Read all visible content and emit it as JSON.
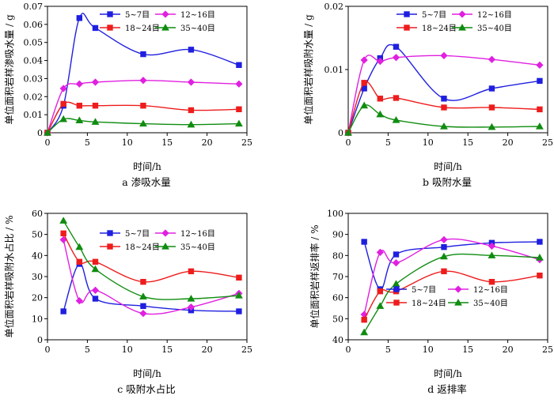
{
  "chart_data": [
    {
      "type": "line",
      "caption": "a  渗吸水量",
      "xlabel": "时间/h",
      "ylabel": "单位面积岩样渗吸水量 / g",
      "xlim": [
        0,
        25
      ],
      "ylim": [
        0,
        0.07
      ],
      "xticks": [
        0,
        5,
        10,
        15,
        20,
        25
      ],
      "xtick_labels": [
        "0",
        "5",
        "10",
        "15",
        "20",
        "25"
      ],
      "yticks": [
        0,
        0.01,
        0.02,
        0.03,
        0.04,
        0.05,
        0.06,
        0.07
      ],
      "ytick_labels": [
        "0",
        "0.01",
        "0.02",
        "0.03",
        "0.04",
        "0.05",
        "0.06",
        "0.07"
      ],
      "series": [
        {
          "name": "5~7目",
          "color": "#1f1fe0",
          "marker": "square",
          "x": [
            0,
            2,
            4,
            6,
            12,
            18,
            24
          ],
          "values": [
            0,
            0.015,
            0.0635,
            0.058,
            0.0435,
            0.046,
            0.0375
          ]
        },
        {
          "name": "12~16目",
          "color": "#e020e0",
          "marker": "diamond",
          "x": [
            0,
            2,
            4,
            6,
            12,
            18,
            24
          ],
          "values": [
            0,
            0.0245,
            0.027,
            0.028,
            0.029,
            0.028,
            0.027
          ]
        },
        {
          "name": "18~24目",
          "color": "#ee1c1c",
          "marker": "square",
          "x": [
            0,
            2,
            4,
            6,
            12,
            18,
            24
          ],
          "values": [
            0,
            0.016,
            0.015,
            0.015,
            0.015,
            0.0125,
            0.013
          ]
        },
        {
          "name": "35~40目",
          "color": "#108c10",
          "marker": "triangle",
          "x": [
            0,
            2,
            4,
            6,
            12,
            18,
            24
          ],
          "values": [
            0,
            0.0075,
            0.0068,
            0.006,
            0.005,
            0.0045,
            0.005
          ]
        }
      ]
    },
    {
      "type": "line",
      "caption": "b  吸附水量",
      "xlabel": "时间/h",
      "ylabel": "单位面积岩样吸附水量 / g",
      "xlim": [
        0,
        25
      ],
      "ylim": [
        0,
        0.02
      ],
      "xticks": [
        0,
        5,
        10,
        15,
        20,
        25
      ],
      "xtick_labels": [
        "0",
        "5",
        "10",
        "15",
        "20",
        "25"
      ],
      "yticks": [
        0,
        0.01,
        0.02
      ],
      "ytick_labels": [
        "0",
        "0.01",
        "0.02"
      ],
      "series": [
        {
          "name": "5~7目",
          "color": "#1f1fe0",
          "marker": "square",
          "x": [
            0,
            2,
            4,
            6,
            12,
            18,
            24
          ],
          "values": [
            0,
            0.007,
            0.0118,
            0.0136,
            0.0054,
            0.007,
            0.0082
          ]
        },
        {
          "name": "12~16目",
          "color": "#e020e0",
          "marker": "diamond",
          "x": [
            0,
            2,
            4,
            6,
            12,
            18,
            24
          ],
          "values": [
            0,
            0.0115,
            0.0113,
            0.0119,
            0.0122,
            0.0116,
            0.0107
          ]
        },
        {
          "name": "18~24目",
          "color": "#ee1c1c",
          "marker": "square",
          "x": [
            0,
            2,
            4,
            6,
            12,
            18,
            24
          ],
          "values": [
            0,
            0.0079,
            0.0054,
            0.0055,
            0.004,
            0.004,
            0.0037
          ]
        },
        {
          "name": "35~40目",
          "color": "#108c10",
          "marker": "triangle",
          "x": [
            0,
            2,
            4,
            6,
            12,
            18,
            24
          ],
          "values": [
            0,
            0.0043,
            0.0029,
            0.002,
            0.001,
            0.0009,
            0.001
          ]
        }
      ]
    },
    {
      "type": "line",
      "caption": "c  吸附水占比",
      "xlabel": "时间/h",
      "ylabel": "单位面积岩样吸附水占比 / %",
      "xlim": [
        0,
        25
      ],
      "ylim": [
        0,
        60
      ],
      "xticks": [
        0,
        5,
        10,
        15,
        20,
        25
      ],
      "xtick_labels": [
        "0",
        "5",
        "10",
        "15",
        "20",
        "25"
      ],
      "yticks": [
        0,
        10,
        20,
        30,
        40,
        50,
        60
      ],
      "ytick_labels": [
        "0",
        "10",
        "20",
        "30",
        "40",
        "50",
        "60"
      ],
      "series": [
        {
          "name": "5~7目",
          "color": "#1f1fe0",
          "marker": "square",
          "x": [
            2,
            4,
            6,
            12,
            18,
            24
          ],
          "values": [
            13.5,
            36,
            19.5,
            16,
            14,
            13.5
          ]
        },
        {
          "name": "12~16目",
          "color": "#e020e0",
          "marker": "diamond",
          "x": [
            2,
            4,
            6,
            12,
            18,
            24
          ],
          "values": [
            47.5,
            18.5,
            23.5,
            12.5,
            15.5,
            22
          ]
        },
        {
          "name": "18~24目",
          "color": "#ee1c1c",
          "marker": "square",
          "x": [
            2,
            4,
            6,
            12,
            18,
            24
          ],
          "values": [
            50.5,
            37,
            37,
            27.5,
            32.5,
            29.5
          ]
        },
        {
          "name": "35~40目",
          "color": "#108c10",
          "marker": "triangle",
          "x": [
            2,
            4,
            6,
            12,
            18,
            24
          ],
          "values": [
            56.5,
            44,
            33.5,
            20.5,
            19.5,
            21
          ]
        }
      ]
    },
    {
      "type": "line",
      "caption": "d  返排率",
      "xlabel": "时间/h",
      "ylabel": "单位面积岩样返排率 / %",
      "xlim": [
        0,
        25
      ],
      "ylim": [
        40,
        100
      ],
      "xticks": [
        0,
        5,
        10,
        15,
        20,
        25
      ],
      "xtick_labels": [
        "0",
        "5",
        "10",
        "15",
        "20",
        "25"
      ],
      "yticks": [
        40,
        50,
        60,
        70,
        80,
        90,
        100
      ],
      "ytick_labels": [
        "40",
        "50",
        "60",
        "70",
        "80",
        "90",
        "100"
      ],
      "series": [
        {
          "name": "5~7目",
          "color": "#1f1fe0",
          "marker": "square",
          "x": [
            2,
            4,
            6,
            12,
            18,
            24
          ],
          "values": [
            86.5,
            64,
            80.5,
            84,
            86,
            86.5
          ]
        },
        {
          "name": "12~16目",
          "color": "#e020e0",
          "marker": "diamond",
          "x": [
            2,
            4,
            6,
            12,
            18,
            24
          ],
          "values": [
            52,
            81.5,
            76.5,
            87.5,
            84.5,
            78
          ]
        },
        {
          "name": "18~24目",
          "color": "#ee1c1c",
          "marker": "square",
          "x": [
            2,
            4,
            6,
            12,
            18,
            24
          ],
          "values": [
            49.5,
            63,
            63,
            72.5,
            67.5,
            70.5
          ]
        },
        {
          "name": "35~40目",
          "color": "#108c10",
          "marker": "triangle",
          "x": [
            2,
            4,
            6,
            12,
            18,
            24
          ],
          "values": [
            43.5,
            56,
            66.5,
            79.5,
            80,
            79
          ]
        }
      ]
    }
  ]
}
